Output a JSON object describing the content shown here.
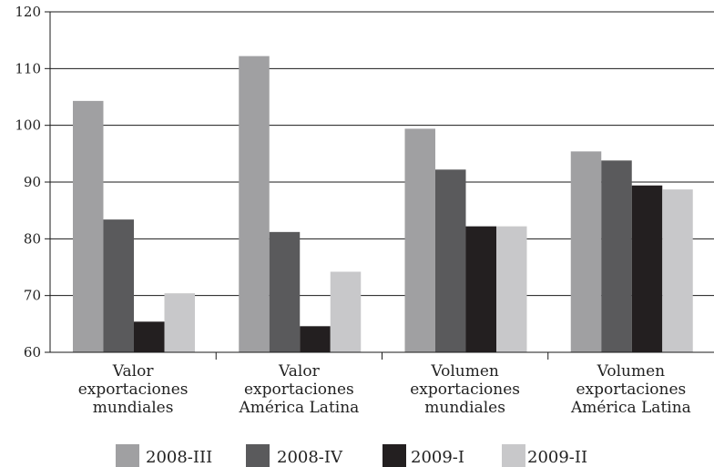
{
  "chart_data": {
    "type": "bar",
    "categories": [
      [
        "Valor",
        "exportaciones",
        "mundiales"
      ],
      [
        "Valor",
        "exportaciones",
        "América Latina"
      ],
      [
        "Volumen",
        "exportaciones",
        "mundiales"
      ],
      [
        "Volumen",
        "exportaciones",
        "América Latina"
      ]
    ],
    "series": [
      {
        "name": "2008-III",
        "values": [
          104.3,
          112.2,
          99.4,
          95.4
        ],
        "color": "#a0a0a2"
      },
      {
        "name": "2008-IV",
        "values": [
          83.4,
          81.2,
          92.2,
          93.8
        ],
        "color": "#5a5a5c"
      },
      {
        "name": "2009-I",
        "values": [
          65.4,
          64.6,
          82.2,
          89.4
        ],
        "color": "#231f20"
      },
      {
        "name": "2009-II",
        "values": [
          70.4,
          74.2,
          82.2,
          88.7
        ],
        "color": "#c8c8ca"
      }
    ],
    "yticks": [
      60,
      70,
      80,
      90,
      100,
      110,
      120
    ],
    "ylim": [
      60,
      120
    ],
    "grid": true,
    "legend_position": "bottom"
  }
}
